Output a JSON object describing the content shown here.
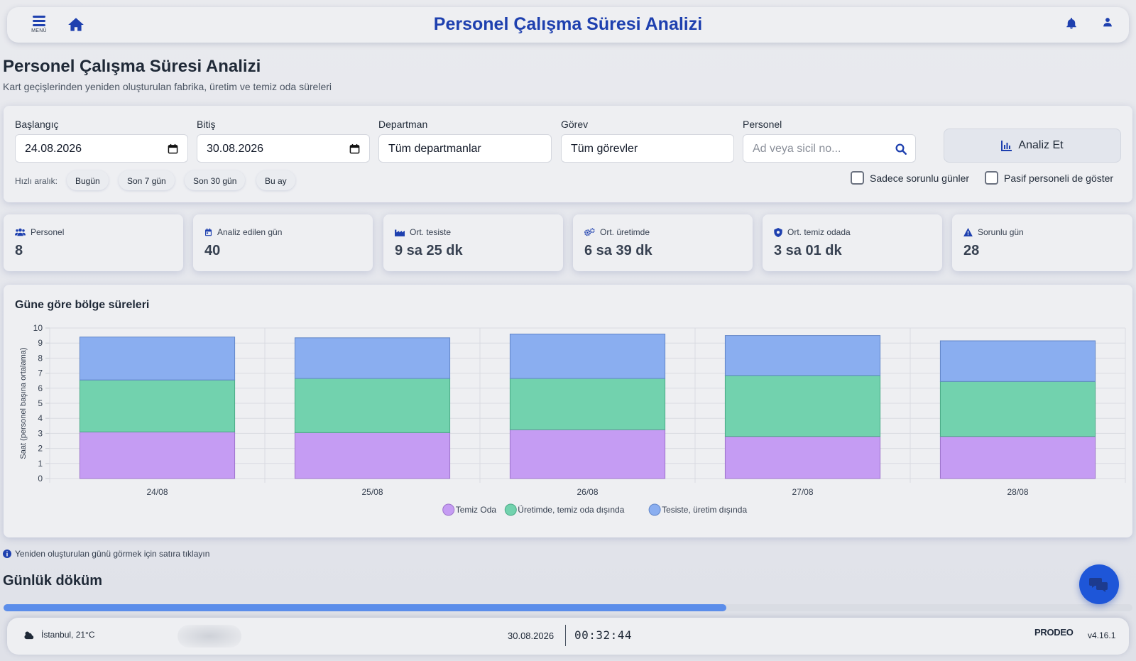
{
  "header": {
    "menu_label": "MENÜ",
    "title": "Personel Çalışma Süresi Analizi"
  },
  "page": {
    "title": "Personel Çalışma Süresi Analizi",
    "subtitle": "Kart geçişlerinden yeniden oluşturulan fabrika, üretim ve temiz oda süreleri"
  },
  "filters": {
    "start_label": "Başlangıç",
    "start_value": "24.08.2026",
    "end_label": "Bitiş",
    "end_value": "30.08.2026",
    "department_label": "Departman",
    "department_value": "Tüm departmanlar",
    "role_label": "Görev",
    "role_value": "Tüm görevler",
    "person_label": "Personel",
    "person_placeholder": "Ad veya sicil no...",
    "analyze_label": "Analiz Et",
    "quick_label": "Hızlı aralık:",
    "quick_ranges": [
      "Bugün",
      "Son 7 gün",
      "Son 30 gün",
      "Bu ay"
    ],
    "only_problem_days": "Sadece sorunlu günler",
    "show_passive": "Pasif personeli de göster"
  },
  "stats": [
    {
      "icon": "users-icon",
      "label": "Personel",
      "value": "8"
    },
    {
      "icon": "calendar-icon",
      "label": "Analiz edilen gün",
      "value": "40"
    },
    {
      "icon": "factory-icon",
      "label": "Ort. tesiste",
      "value": "9 sa 25 dk"
    },
    {
      "icon": "gears-icon",
      "label": "Ort. üretimde",
      "value": "6 sa 39 dk"
    },
    {
      "icon": "shield-icon",
      "label": "Ort. temiz odada",
      "value": "3 sa 01 dk"
    },
    {
      "icon": "warning-icon",
      "label": "Sorunlu gün",
      "value": "28"
    }
  ],
  "chart_title": "Güne göre bölge süreleri",
  "chart_data": {
    "type": "bar",
    "stacked": true,
    "categories": [
      "24/08",
      "25/08",
      "26/08",
      "27/08",
      "28/08"
    ],
    "series": [
      {
        "name": "Temiz Oda",
        "color": "#c59cf3",
        "values": [
          3.1,
          3.05,
          3.25,
          2.8,
          2.8
        ]
      },
      {
        "name": "Üretimde, temiz oda dışında",
        "color": "#72d2ae",
        "values": [
          3.45,
          3.6,
          3.4,
          4.05,
          3.65
        ]
      },
      {
        "name": "Tesiste, üretim dışında",
        "color": "#8aaef0",
        "values": [
          2.85,
          2.7,
          2.95,
          2.65,
          2.7
        ]
      }
    ],
    "ylabel": "Saat (personel başına ortalama)",
    "ylim": [
      0,
      10
    ],
    "yticks": [
      0,
      1,
      2,
      3,
      4,
      5,
      6,
      7,
      8,
      9,
      10
    ],
    "legend_position": "bottom",
    "grid": true
  },
  "hint": "Yeniden oluşturulan günü görmek için satıra tıklayın",
  "section_title": "Günlük döküm",
  "progress": 0.64,
  "footer": {
    "weather": "İstanbul, 21°C",
    "date": "30.08.2026",
    "time": "00:32:44",
    "logo": "PRODEO",
    "version": "v4.16.1"
  },
  "colors": {
    "accent": "#1e40af",
    "fab": "#1e56d8",
    "progress": "#5b8dea"
  }
}
